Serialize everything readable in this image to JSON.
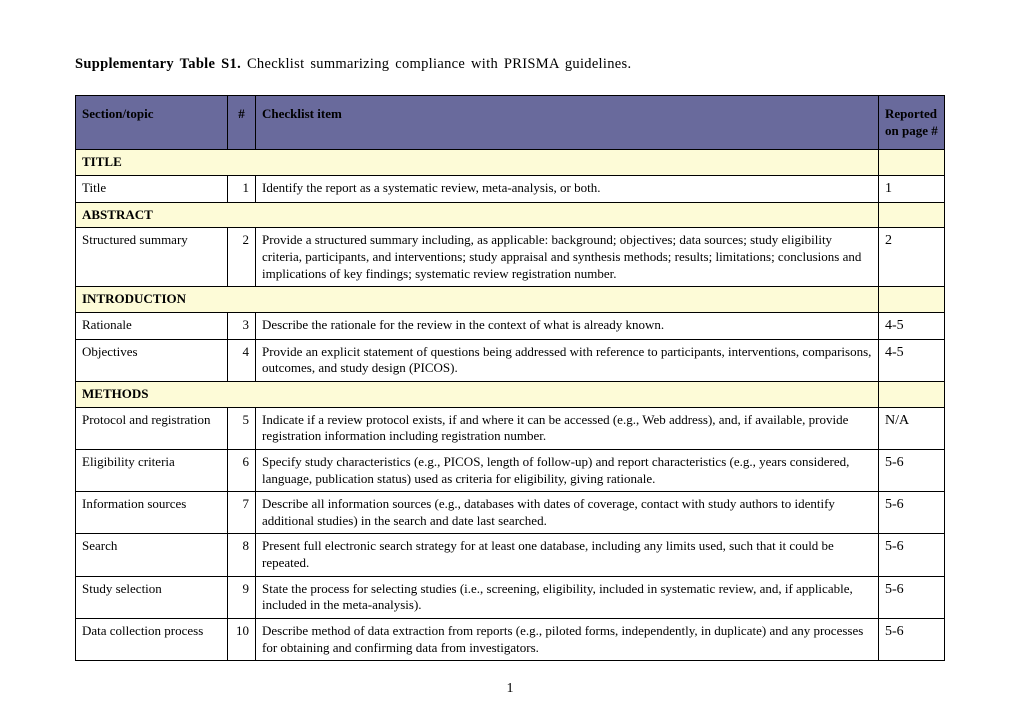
{
  "caption_bold": "Supplementary Table S1.",
  "caption_rest": " Checklist  summarizing  compliance  with  PRISMA  guidelines.",
  "columns": {
    "topic": "Section/topic",
    "num": "#",
    "item": "Checklist item",
    "page": "Reported on page #"
  },
  "sections": [
    {
      "heading": "TITLE",
      "rows": [
        {
          "topic": "Title",
          "num": "1",
          "item": "Identify the report as a systematic review, meta-analysis, or both.",
          "page": "1"
        }
      ]
    },
    {
      "heading": "ABSTRACT",
      "rows": [
        {
          "topic": "Structured summary",
          "num": "2",
          "item": "Provide a structured summary including, as applicable: background; objectives; data sources; study eligibility criteria, participants, and interventions; study appraisal and synthesis methods; results; limitations; conclusions and implications of key findings; systematic review registration number.",
          "page": "2"
        }
      ]
    },
    {
      "heading": "INTRODUCTION",
      "rows": [
        {
          "topic": "Rationale",
          "num": "3",
          "item": "Describe the rationale for the review in the context of what is already known.",
          "page": "4-5"
        },
        {
          "topic": "Objectives",
          "num": "4",
          "item": "Provide an explicit statement of questions being addressed with reference to participants, interventions, comparisons, outcomes, and study design (PICOS).",
          "page": "4-5"
        }
      ]
    },
    {
      "heading": "METHODS",
      "rows": [
        {
          "topic": "Protocol and registration",
          "num": "5",
          "item": "Indicate if a review protocol exists, if and where it can be accessed (e.g., Web address), and, if available, provide registration information including registration number.",
          "page": "N/A"
        },
        {
          "topic": "Eligibility criteria",
          "num": "6",
          "item": "Specify study characteristics (e.g., PICOS, length of follow-up) and report characteristics (e.g., years considered, language, publication status) used as criteria for eligibility, giving rationale.",
          "page": "5-6"
        },
        {
          "topic": "Information sources",
          "num": "7",
          "item": "Describe all information sources (e.g., databases with dates of coverage, contact with study authors to identify additional studies) in the search and date last searched.",
          "page": "5-6"
        },
        {
          "topic": "Search",
          "num": "8",
          "item": "Present full electronic search strategy for at least one database, including any limits used, such that it could be repeated.",
          "page": "5-6"
        },
        {
          "topic": "Study selection",
          "num": "9",
          "item": "State the process for selecting studies (i.e., screening, eligibility, included in systematic review, and, if applicable, included in the meta-analysis).",
          "page": "5-6"
        },
        {
          "topic": "Data collection process",
          "num": "10",
          "item": "Describe method of data extraction from reports (e.g., piloted forms, independently, in duplicate) and any processes for obtaining and confirming data from investigators.",
          "page": "5-6"
        }
      ]
    }
  ],
  "page_number": "1",
  "colors": {
    "header_bg": "#696a9c",
    "section_bg": "#fdfbd7",
    "border": "#000000",
    "page_bg": "#ffffff"
  }
}
